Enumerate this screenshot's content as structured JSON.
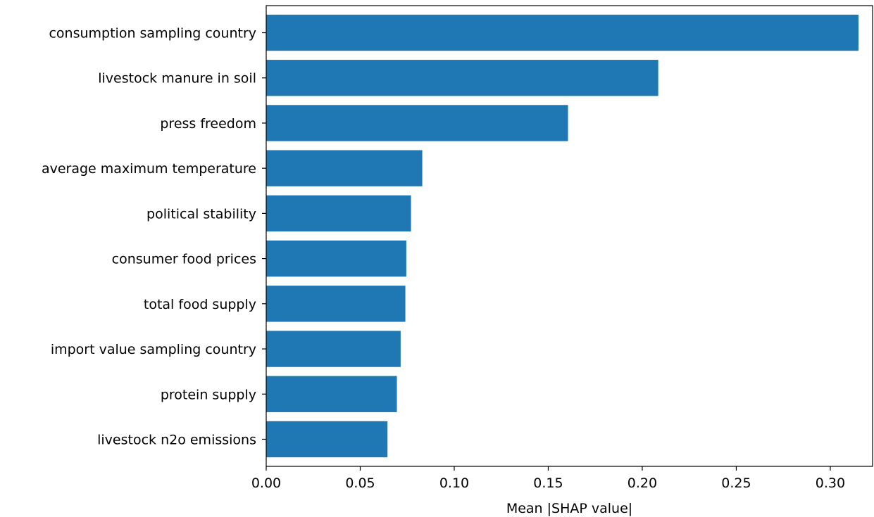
{
  "chart_data": {
    "type": "bar",
    "orientation": "horizontal",
    "categories": [
      "consumption sampling country",
      "livestock manure in soil",
      "press freedom",
      "average maximum temperature",
      "political stability",
      "consumer food prices",
      "total food supply",
      "import value sampling country",
      "protein supply",
      "livestock n2o emissions"
    ],
    "values": [
      0.315,
      0.2085,
      0.1605,
      0.083,
      0.077,
      0.0745,
      0.074,
      0.0715,
      0.0695,
      0.0645
    ],
    "xlabel": "Mean |SHAP value|",
    "ylabel": "",
    "xlim": [
      0.0,
      0.3225
    ],
    "xticks": [
      "0.00",
      "0.05",
      "0.10",
      "0.15",
      "0.20",
      "0.25",
      "0.30"
    ],
    "grid": false,
    "bar_color": "#1f77b4"
  }
}
